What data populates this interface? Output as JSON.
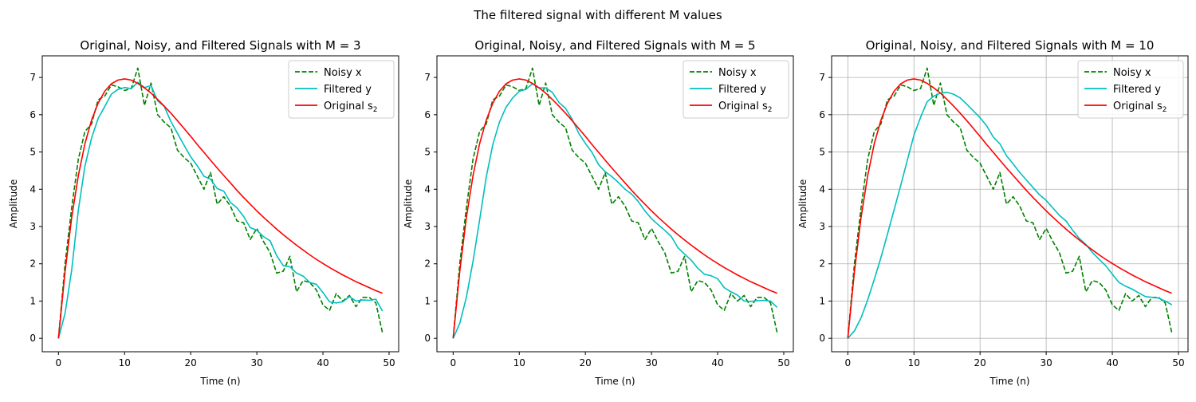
{
  "figure": {
    "suptitle": "The filtered signal with different M values"
  },
  "colors": {
    "noisy": "#008000",
    "filtered": "#00bfbf",
    "original": "#ff0000",
    "grid": "#b0b0b0"
  },
  "chart_data": [
    {
      "type": "line",
      "title": "Original, Noisy, and Filtered Signals with M = 3",
      "xlabel": "Time (n)",
      "ylabel": "Amplitude",
      "xlim": [
        -2.45,
        51.45
      ],
      "ylim": [
        -0.36,
        7.58
      ],
      "xticks": [
        0,
        10,
        20,
        30,
        40,
        50
      ],
      "yticks": [
        0,
        1,
        2,
        3,
        4,
        5,
        6,
        7
      ],
      "grid": false,
      "legend_placement": "top-right",
      "legend": [
        "Noisy x",
        "Filtered y",
        "Original s₂"
      ],
      "series": [
        {
          "name": "Noisy x",
          "style": "dashed",
          "x": [
            0,
            1,
            2,
            3,
            4,
            5,
            6,
            7,
            8,
            9,
            10,
            11,
            12,
            13,
            14,
            15,
            16,
            17,
            18,
            19,
            20,
            21,
            22,
            23,
            24,
            25,
            26,
            27,
            28,
            29,
            30,
            31,
            32,
            33,
            34,
            35,
            36,
            37,
            38,
            39,
            40,
            41,
            42,
            43,
            44,
            45,
            46,
            47,
            48,
            49
          ],
          "values": [
            0.0,
            2.0,
            3.5,
            4.8,
            5.55,
            5.75,
            6.4,
            6.5,
            6.8,
            6.75,
            6.65,
            6.7,
            7.25,
            6.25,
            6.85,
            6.0,
            5.8,
            5.65,
            5.05,
            4.85,
            4.7,
            4.35,
            4.0,
            4.45,
            3.6,
            3.8,
            3.55,
            3.15,
            3.1,
            2.65,
            2.95,
            2.6,
            2.3,
            1.75,
            1.8,
            2.2,
            1.25,
            1.55,
            1.5,
            1.3,
            0.9,
            0.75,
            1.2,
            1.0,
            1.15,
            0.85,
            1.1,
            1.1,
            0.95,
            0.15
          ]
        },
        {
          "name": "Filtered y",
          "style": "solid",
          "x": [
            0,
            1,
            2,
            3,
            4,
            5,
            6,
            7,
            8,
            9,
            10,
            11,
            12,
            13,
            14,
            15,
            16,
            17,
            18,
            19,
            20,
            21,
            22,
            23,
            24,
            25,
            26,
            27,
            28,
            29,
            30,
            31,
            32,
            33,
            34,
            35,
            36,
            37,
            38,
            39,
            40,
            41,
            42,
            43,
            44,
            45,
            46,
            47,
            48,
            49
          ],
          "values": [
            0.0,
            0.67,
            1.83,
            3.43,
            4.62,
            5.37,
            5.9,
            6.22,
            6.55,
            6.68,
            6.73,
            6.7,
            6.87,
            6.73,
            6.78,
            6.37,
            6.22,
            5.82,
            5.5,
            5.18,
            4.87,
            4.63,
            4.35,
            4.27,
            4.02,
            3.95,
            3.65,
            3.5,
            3.27,
            2.97,
            2.9,
            2.73,
            2.62,
            2.22,
            1.95,
            1.92,
            1.75,
            1.67,
            1.5,
            1.45,
            1.23,
            0.98,
            0.95,
            0.98,
            1.12,
            1.0,
            1.03,
            1.02,
            1.05,
            0.73
          ]
        },
        {
          "name": "Original s₂",
          "style": "solid",
          "x": [
            0,
            1,
            2,
            3,
            4,
            5,
            6,
            7,
            8,
            9,
            10,
            11,
            12,
            13,
            14,
            15,
            16,
            17,
            18,
            19,
            20,
            21,
            22,
            23,
            24,
            25,
            26,
            27,
            28,
            29,
            30,
            31,
            32,
            33,
            34,
            35,
            36,
            37,
            38,
            39,
            40,
            41,
            42,
            43,
            44,
            45,
            46,
            47,
            48,
            49
          ],
          "values": [
            0.0,
            1.79,
            3.24,
            4.36,
            5.22,
            5.85,
            6.31,
            6.63,
            6.83,
            6.93,
            6.96,
            6.93,
            6.84,
            6.72,
            6.58,
            6.41,
            6.23,
            6.04,
            5.84,
            5.63,
            5.42,
            5.2,
            4.99,
            4.78,
            4.57,
            4.37,
            4.17,
            3.97,
            3.78,
            3.6,
            3.42,
            3.25,
            3.09,
            2.93,
            2.78,
            2.64,
            2.5,
            2.37,
            2.24,
            2.12,
            2.01,
            1.9,
            1.8,
            1.7,
            1.61,
            1.52,
            1.44,
            1.36,
            1.28,
            1.21
          ]
        }
      ]
    },
    {
      "type": "line",
      "title": "Original, Noisy, and Filtered Signals with M = 5",
      "xlabel": "Time (n)",
      "ylabel": "Amplitude",
      "xlim": [
        -2.45,
        51.45
      ],
      "ylim": [
        -0.36,
        7.58
      ],
      "xticks": [
        0,
        10,
        20,
        30,
        40,
        50
      ],
      "yticks": [
        0,
        1,
        2,
        3,
        4,
        5,
        6,
        7
      ],
      "grid": false,
      "legend_placement": "top-right",
      "legend": [
        "Noisy x",
        "Filtered y",
        "Original s₂"
      ],
      "series": [
        {
          "name": "Noisy x",
          "style": "dashed",
          "x": [
            0,
            1,
            2,
            3,
            4,
            5,
            6,
            7,
            8,
            9,
            10,
            11,
            12,
            13,
            14,
            15,
            16,
            17,
            18,
            19,
            20,
            21,
            22,
            23,
            24,
            25,
            26,
            27,
            28,
            29,
            30,
            31,
            32,
            33,
            34,
            35,
            36,
            37,
            38,
            39,
            40,
            41,
            42,
            43,
            44,
            45,
            46,
            47,
            48,
            49
          ],
          "values": [
            0.0,
            2.0,
            3.5,
            4.8,
            5.55,
            5.75,
            6.4,
            6.5,
            6.8,
            6.75,
            6.65,
            6.7,
            7.25,
            6.25,
            6.85,
            6.0,
            5.8,
            5.65,
            5.05,
            4.85,
            4.7,
            4.35,
            4.0,
            4.45,
            3.6,
            3.8,
            3.55,
            3.15,
            3.1,
            2.65,
            2.95,
            2.6,
            2.3,
            1.75,
            1.8,
            2.2,
            1.25,
            1.55,
            1.5,
            1.3,
            0.9,
            0.75,
            1.2,
            1.0,
            1.15,
            0.85,
            1.1,
            1.1,
            0.95,
            0.15
          ]
        },
        {
          "name": "Filtered y",
          "style": "solid",
          "x": [
            0,
            1,
            2,
            3,
            4,
            5,
            6,
            7,
            8,
            9,
            10,
            11,
            12,
            13,
            14,
            15,
            16,
            17,
            18,
            19,
            20,
            21,
            22,
            23,
            24,
            25,
            26,
            27,
            28,
            29,
            30,
            31,
            32,
            33,
            34,
            35,
            36,
            37,
            38,
            39,
            40,
            41,
            42,
            43,
            44,
            45,
            46,
            47,
            48,
            49
          ],
          "values": [
            0.0,
            0.4,
            1.1,
            2.06,
            3.17,
            4.32,
            5.2,
            5.8,
            6.2,
            6.45,
            6.63,
            6.68,
            6.83,
            6.72,
            6.72,
            6.6,
            6.33,
            6.17,
            5.88,
            5.5,
            5.23,
            4.99,
            4.66,
            4.47,
            4.34,
            4.18,
            4.0,
            3.87,
            3.67,
            3.42,
            3.21,
            3.05,
            2.9,
            2.73,
            2.43,
            2.26,
            2.1,
            1.88,
            1.72,
            1.68,
            1.6,
            1.36,
            1.25,
            1.16,
            1.0,
            0.99,
            1.01,
            1.02,
            1.0,
            0.83
          ]
        },
        {
          "name": "Original s₂",
          "style": "solid",
          "x": [
            0,
            1,
            2,
            3,
            4,
            5,
            6,
            7,
            8,
            9,
            10,
            11,
            12,
            13,
            14,
            15,
            16,
            17,
            18,
            19,
            20,
            21,
            22,
            23,
            24,
            25,
            26,
            27,
            28,
            29,
            30,
            31,
            32,
            33,
            34,
            35,
            36,
            37,
            38,
            39,
            40,
            41,
            42,
            43,
            44,
            45,
            46,
            47,
            48,
            49
          ],
          "values": [
            0.0,
            1.79,
            3.24,
            4.36,
            5.22,
            5.85,
            6.31,
            6.63,
            6.83,
            6.93,
            6.96,
            6.93,
            6.84,
            6.72,
            6.58,
            6.41,
            6.23,
            6.04,
            5.84,
            5.63,
            5.42,
            5.2,
            4.99,
            4.78,
            4.57,
            4.37,
            4.17,
            3.97,
            3.78,
            3.6,
            3.42,
            3.25,
            3.09,
            2.93,
            2.78,
            2.64,
            2.5,
            2.37,
            2.24,
            2.12,
            2.01,
            1.9,
            1.8,
            1.7,
            1.61,
            1.52,
            1.44,
            1.36,
            1.28,
            1.21
          ]
        }
      ]
    },
    {
      "type": "line",
      "title": "Original, Noisy, and Filtered Signals with M = 10",
      "xlabel": "Time (n)",
      "ylabel": "Amplitude",
      "xlim": [
        -2.45,
        51.45
      ],
      "ylim": [
        -0.36,
        7.58
      ],
      "xticks": [
        0,
        10,
        20,
        30,
        40,
        50
      ],
      "yticks": [
        0,
        1,
        2,
        3,
        4,
        5,
        6,
        7
      ],
      "grid": true,
      "legend_placement": "top-right",
      "legend": [
        "Noisy x",
        "Filtered y",
        "Original s₂"
      ],
      "series": [
        {
          "name": "Noisy x",
          "style": "dashed",
          "x": [
            0,
            1,
            2,
            3,
            4,
            5,
            6,
            7,
            8,
            9,
            10,
            11,
            12,
            13,
            14,
            15,
            16,
            17,
            18,
            19,
            20,
            21,
            22,
            23,
            24,
            25,
            26,
            27,
            28,
            29,
            30,
            31,
            32,
            33,
            34,
            35,
            36,
            37,
            38,
            39,
            40,
            41,
            42,
            43,
            44,
            45,
            46,
            47,
            48,
            49
          ],
          "values": [
            0.0,
            2.0,
            3.5,
            4.8,
            5.55,
            5.75,
            6.4,
            6.5,
            6.8,
            6.75,
            6.65,
            6.7,
            7.25,
            6.25,
            6.85,
            6.0,
            5.8,
            5.65,
            5.05,
            4.85,
            4.7,
            4.35,
            4.0,
            4.45,
            3.6,
            3.8,
            3.55,
            3.15,
            3.1,
            2.65,
            2.95,
            2.6,
            2.3,
            1.75,
            1.8,
            2.2,
            1.25,
            1.55,
            1.5,
            1.3,
            0.9,
            0.75,
            1.2,
            1.0,
            1.15,
            0.85,
            1.1,
            1.1,
            0.95,
            0.15
          ]
        },
        {
          "name": "Filtered y",
          "style": "solid",
          "x": [
            0,
            1,
            2,
            3,
            4,
            5,
            6,
            7,
            8,
            9,
            10,
            11,
            12,
            13,
            14,
            15,
            16,
            17,
            18,
            19,
            20,
            21,
            22,
            23,
            24,
            25,
            26,
            27,
            28,
            29,
            30,
            31,
            32,
            33,
            34,
            35,
            36,
            37,
            38,
            39,
            40,
            41,
            42,
            43,
            44,
            45,
            46,
            47,
            48,
            49
          ],
          "values": [
            0.0,
            0.2,
            0.55,
            1.03,
            1.58,
            2.16,
            2.8,
            3.45,
            4.1,
            4.78,
            5.45,
            5.93,
            6.35,
            6.5,
            6.58,
            6.6,
            6.55,
            6.45,
            6.28,
            6.1,
            5.92,
            5.7,
            5.4,
            5.22,
            4.9,
            4.68,
            4.45,
            4.25,
            4.05,
            3.85,
            3.7,
            3.5,
            3.3,
            3.15,
            2.9,
            2.68,
            2.52,
            2.3,
            2.12,
            1.95,
            1.72,
            1.5,
            1.4,
            1.32,
            1.22,
            1.12,
            1.1,
            1.08,
            1.0,
            0.9
          ]
        },
        {
          "name": "Original s₂",
          "style": "solid",
          "x": [
            0,
            1,
            2,
            3,
            4,
            5,
            6,
            7,
            8,
            9,
            10,
            11,
            12,
            13,
            14,
            15,
            16,
            17,
            18,
            19,
            20,
            21,
            22,
            23,
            24,
            25,
            26,
            27,
            28,
            29,
            30,
            31,
            32,
            33,
            34,
            35,
            36,
            37,
            38,
            39,
            40,
            41,
            42,
            43,
            44,
            45,
            46,
            47,
            48,
            49
          ],
          "values": [
            0.0,
            1.79,
            3.24,
            4.36,
            5.22,
            5.85,
            6.31,
            6.63,
            6.83,
            6.93,
            6.96,
            6.93,
            6.84,
            6.72,
            6.58,
            6.41,
            6.23,
            6.04,
            5.84,
            5.63,
            5.42,
            5.2,
            4.99,
            4.78,
            4.57,
            4.37,
            4.17,
            3.97,
            3.78,
            3.6,
            3.42,
            3.25,
            3.09,
            2.93,
            2.78,
            2.64,
            2.5,
            2.37,
            2.24,
            2.12,
            2.01,
            1.9,
            1.8,
            1.7,
            1.61,
            1.52,
            1.44,
            1.36,
            1.28,
            1.21
          ]
        }
      ]
    }
  ]
}
